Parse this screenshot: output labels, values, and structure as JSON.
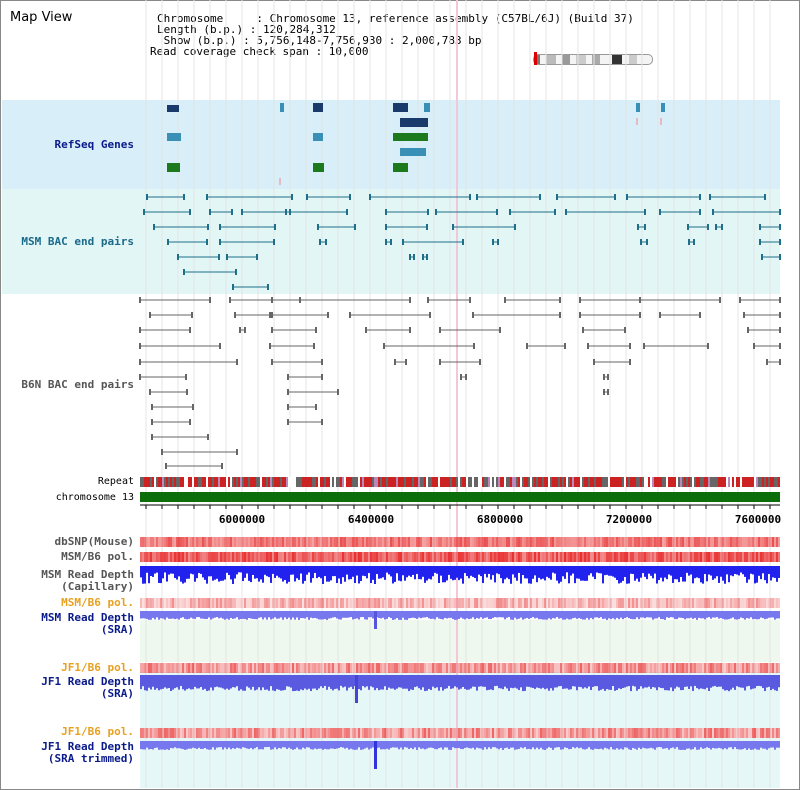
{
  "title": "Map View",
  "info": {
    "chromosome_key": "Chromosome     : Chromosome 13, reference assembly (C57BL/6J) (Build 37)",
    "length_key": "Length (b.p.) : 120,284,312",
    "show_key": " Show (b.p.) : 5,756,148-7,756,930 : 2,000,783 bp",
    "coverage_key": "Read coverage check span : 10,000"
  },
  "labels": {
    "refseq": "RefSeq Genes",
    "msm_bac": "MSM BAC end pairs",
    "b6n_bac": "B6N BAC end pairs",
    "repeat": "Repeat",
    "chromosome": "chromosome 13",
    "dbsnp": "dbSNP(Mouse)",
    "msm_b6_pol_1": "MSM/B6 pol.",
    "msm_read_depth_cap": "MSM Read Depth\n(Capillary)",
    "msm_b6_pol_2": "MSM/B6 pol.",
    "msm_read_depth_sra": "MSM Read Depth\n(SRA)",
    "jf1_b6_pol_1": "JF1/B6 pol.",
    "jf1_read_depth_sra": "JF1 Read Depth\n(SRA)",
    "jf1_b6_pol_2": "JF1/B6 pol.",
    "jf1_read_depth_trim": "JF1 Read Depth\n(SRA trimmed)"
  },
  "axis": {
    "ticks": [
      "6000000",
      "6400000",
      "6800000",
      "7200000",
      "7600000"
    ],
    "range_bp": [
      5756148,
      7756930
    ]
  },
  "colors": {
    "refseq_bg": "#d8eef8",
    "msm_bac_bg": "#e2f6f6",
    "refseq_dark": "#1a3a6b",
    "refseq_mid": "#3a8fb7",
    "refseq_green": "#1c7a1c",
    "msm_bac_line": "#1f6f8b",
    "b6n_line": "#666666",
    "chromosome_bar": "#0b6e0b",
    "pol_red": "#e83030",
    "depth_blue": "#2222ee",
    "sra_bg": "#eef8ee",
    "jf1_bg": "#e6f7f7",
    "label_navy": "#0a1a8a",
    "label_orange": "#e8a020",
    "label_teal": "#1a6a8a"
  }
}
